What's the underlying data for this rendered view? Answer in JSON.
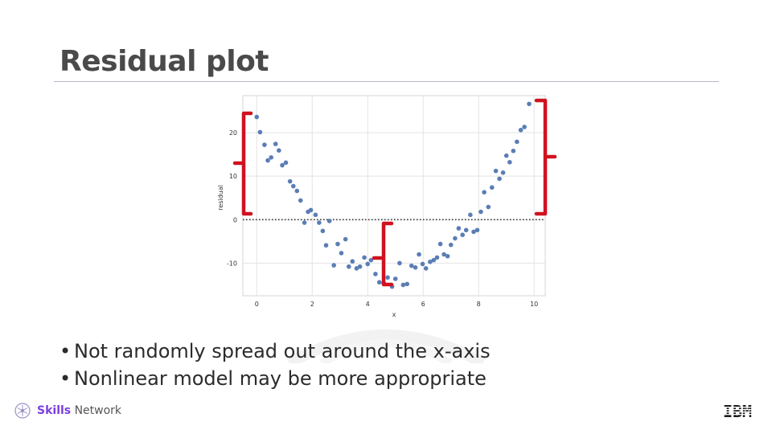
{
  "slide": {
    "title": "Residual plot"
  },
  "bullets": [
    "Not randomly spread out around the x-axis",
    "Nonlinear model may be more appropriate"
  ],
  "footer": {
    "brand_strong": "Skills",
    "brand_rest": " Network",
    "ibm": "IBM"
  },
  "colors": {
    "point": "#5a7db5",
    "bracket": "#d0121f",
    "grid": "#e3e3e3",
    "brand": "#7b3fe4"
  },
  "chart_data": {
    "type": "scatter",
    "xlabel": "x",
    "ylabel": "residual",
    "xlim": [
      -0.5,
      10.4
    ],
    "ylim": [
      -17.5,
      28.5
    ],
    "xticks": [
      0,
      2,
      4,
      6,
      8,
      10
    ],
    "yticks": [
      -10,
      0,
      10,
      20
    ],
    "grid": true,
    "reference_line": {
      "y": 0,
      "style": "dotted"
    },
    "points": [
      [
        0.0,
        23.6
      ],
      [
        0.12,
        20.1
      ],
      [
        0.28,
        17.2
      ],
      [
        0.4,
        13.6
      ],
      [
        0.52,
        14.3
      ],
      [
        0.68,
        17.4
      ],
      [
        0.8,
        15.9
      ],
      [
        0.92,
        12.5
      ],
      [
        1.05,
        13.1
      ],
      [
        1.2,
        8.8
      ],
      [
        1.32,
        7.7
      ],
      [
        1.45,
        6.6
      ],
      [
        1.58,
        4.4
      ],
      [
        1.72,
        -0.7
      ],
      [
        1.85,
        1.8
      ],
      [
        1.95,
        2.2
      ],
      [
        2.12,
        1.1
      ],
      [
        2.25,
        -0.7
      ],
      [
        2.38,
        -2.6
      ],
      [
        2.5,
        -5.9
      ],
      [
        2.62,
        -0.3
      ],
      [
        2.78,
        -10.5
      ],
      [
        2.92,
        -5.6
      ],
      [
        3.05,
        -7.7
      ],
      [
        3.2,
        -4.5
      ],
      [
        3.32,
        -10.8
      ],
      [
        3.45,
        -9.6
      ],
      [
        3.6,
        -11.2
      ],
      [
        3.72,
        -10.8
      ],
      [
        3.88,
        -8.7
      ],
      [
        4.0,
        -10.2
      ],
      [
        4.12,
        -9.3
      ],
      [
        4.28,
        -12.5
      ],
      [
        4.42,
        -14.4
      ],
      [
        4.58,
        -14.6
      ],
      [
        4.72,
        -13.3
      ],
      [
        4.88,
        -15.4
      ],
      [
        5.0,
        -13.6
      ],
      [
        5.15,
        -10.0
      ],
      [
        5.28,
        -15.0
      ],
      [
        5.42,
        -14.8
      ],
      [
        5.58,
        -10.6
      ],
      [
        5.72,
        -11.0
      ],
      [
        5.85,
        -8.0
      ],
      [
        5.98,
        -10.2
      ],
      [
        6.1,
        -11.2
      ],
      [
        6.25,
        -9.7
      ],
      [
        6.38,
        -9.3
      ],
      [
        6.5,
        -8.7
      ],
      [
        6.62,
        -5.6
      ],
      [
        6.75,
        -8.0
      ],
      [
        6.88,
        -8.4
      ],
      [
        7.0,
        -5.8
      ],
      [
        7.15,
        -4.3
      ],
      [
        7.28,
        -2.0
      ],
      [
        7.42,
        -3.5
      ],
      [
        7.55,
        -2.4
      ],
      [
        7.7,
        1.1
      ],
      [
        7.82,
        -2.8
      ],
      [
        7.95,
        -2.4
      ],
      [
        8.08,
        1.8
      ],
      [
        8.2,
        6.3
      ],
      [
        8.35,
        2.9
      ],
      [
        8.48,
        7.4
      ],
      [
        8.62,
        11.2
      ],
      [
        8.75,
        9.4
      ],
      [
        8.88,
        10.8
      ],
      [
        9.0,
        14.7
      ],
      [
        9.12,
        13.2
      ],
      [
        9.25,
        15.8
      ],
      [
        9.38,
        17.9
      ],
      [
        9.52,
        20.6
      ],
      [
        9.65,
        21.3
      ],
      [
        9.82,
        26.6
      ]
    ]
  }
}
